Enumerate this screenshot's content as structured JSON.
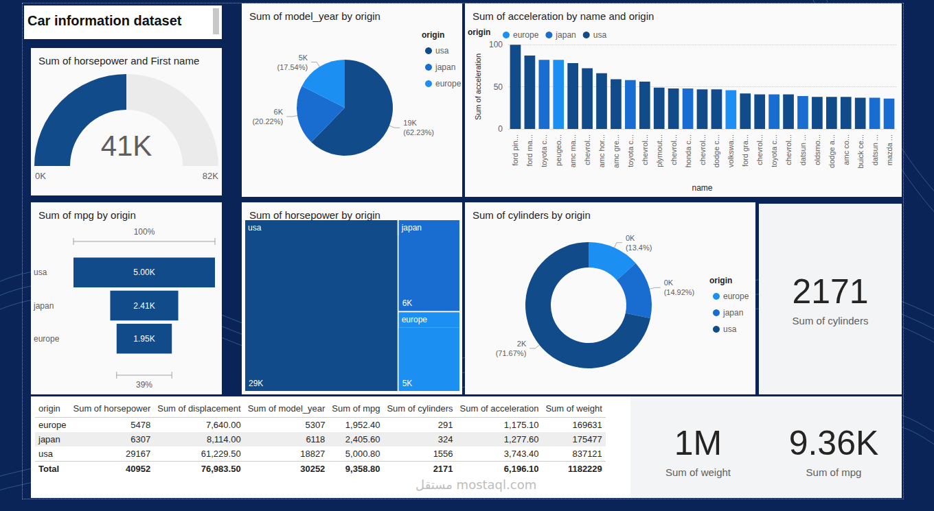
{
  "title": "Car information dataset",
  "chart_data": [
    {
      "type": "gauge",
      "title": "Sum of horsepower and First name",
      "values": [
        40952
      ],
      "value_labels": [
        "41K"
      ],
      "ylim": [
        0,
        81904
      ],
      "yticks": [
        {
          "value": 0,
          "label": "0K"
        },
        {
          "value": 81904,
          "label": "82K"
        }
      ],
      "color": "#124b8a",
      "data_labels": true
    },
    {
      "type": "pie",
      "title": "Sum of model_year by origin",
      "categories": [
        "usa",
        "japan",
        "europe"
      ],
      "values": [
        18827,
        6118,
        5307
      ],
      "value_labels": [
        "19K (62.23%)",
        "6K (20.22%)",
        "5K (17.54%)"
      ],
      "colors": [
        "#124b8a",
        "#1a6dd0",
        "#1b8ff2"
      ],
      "legend": "top-right",
      "legend_title": "origin",
      "data_labels": true
    },
    {
      "type": "bar",
      "title": "Sum of acceleration by name and origin",
      "xlabel": "name",
      "ylabel": "Sum of acceleration",
      "categories": [
        "ford pin...",
        "ford ma...",
        "toyota c...",
        "peugeo...",
        "amc ma...",
        "chevrol...",
        "amc hor...",
        "amc gre...",
        "toyota c...",
        "chevrol...",
        "plymout...",
        "chevrol...",
        "honda c...",
        "chevrol...",
        "dodge c...",
        "volkswa...",
        "ford gra...",
        "chevrol...",
        "toyota c...",
        "chevrol...",
        "datsun ...",
        "oldsmo...",
        "dodge a...",
        "amc co...",
        "buick ce...",
        "datsun ...",
        "mazda ..."
      ],
      "series": [
        {
          "name": "europe",
          "color": "#1b8ff2",
          "values": [
            null,
            null,
            null,
            82,
            null,
            null,
            null,
            null,
            null,
            null,
            null,
            null,
            null,
            null,
            null,
            46,
            null,
            null,
            null,
            null,
            null,
            null,
            null,
            null,
            null,
            null,
            null
          ]
        },
        {
          "name": "japan",
          "color": "#1a6dd0",
          "values": [
            null,
            null,
            82,
            null,
            null,
            null,
            null,
            null,
            58,
            null,
            null,
            null,
            48,
            null,
            null,
            null,
            null,
            null,
            41,
            null,
            39,
            null,
            null,
            null,
            null,
            37,
            36
          ]
        },
        {
          "name": "usa",
          "color": "#124b8a",
          "values": [
            99.8,
            87,
            null,
            null,
            78,
            72,
            66,
            59,
            null,
            56,
            49,
            48,
            null,
            47,
            47,
            null,
            42,
            41,
            null,
            41,
            null,
            38,
            38,
            38,
            37,
            null,
            null
          ]
        }
      ],
      "stacked": true,
      "ylim": [
        0,
        100
      ],
      "yticks": [
        0,
        50,
        100
      ],
      "grid": true,
      "legend": "top-left",
      "legend_title": "origin"
    },
    {
      "type": "funnel",
      "title": "Sum of mpg by origin",
      "categories": [
        "usa",
        "japan",
        "europe"
      ],
      "values": [
        5000.8,
        2405.6,
        1952.4
      ],
      "value_labels": [
        "5.00K",
        "2.41K",
        "1.95K"
      ],
      "xlim": [
        0,
        5000.8
      ],
      "color": "#124b8a",
      "data_labels": true,
      "tick_labels": "y",
      "annotations": [
        {
          "value": 100,
          "label": "100%"
        },
        {
          "value": 39,
          "label": "39%"
        }
      ]
    },
    {
      "type": "treemap",
      "title": "Sum of horsepower by origin",
      "categories": [
        "usa",
        "japan",
        "europe"
      ],
      "values": [
        29167,
        6307,
        5478
      ],
      "value_labels": [
        "29K",
        "6K",
        "5K"
      ],
      "colors": [
        "#124b8a",
        "#1a6dd0",
        "#1b8ff2"
      ],
      "data_labels": true
    },
    {
      "type": "donut",
      "title": "Sum of cylinders by origin",
      "categories": [
        "europe",
        "japan",
        "usa"
      ],
      "values": [
        291,
        324,
        1556
      ],
      "value_labels": [
        "0K (13.4%)",
        "0K (14.92%)",
        "2K (71.67%)"
      ],
      "colors": [
        "#1b8ff2",
        "#1a6dd0",
        "#124b8a"
      ],
      "legend": "right",
      "legend_title": "origin",
      "data_labels": true
    }
  ],
  "cards": [
    {
      "value": "2171",
      "caption": "Sum of cylinders"
    },
    {
      "value": "1M",
      "caption": "Sum of weight"
    },
    {
      "value": "9.36K",
      "caption": "Sum of mpg"
    }
  ],
  "table": {
    "columns": [
      "origin",
      "Sum of horsepower",
      "Sum of displacement",
      "Sum of model_year",
      "Sum of mpg",
      "Sum of cylinders",
      "Sum of acceleration",
      "Sum of weight"
    ],
    "rows": [
      [
        "europe",
        "5478",
        "7,640.00",
        "5307",
        "1,952.40",
        "291",
        "1,175.10",
        "169631"
      ],
      [
        "japan",
        "6307",
        "8,114.00",
        "6118",
        "2,405.60",
        "324",
        "1,277.60",
        "175477"
      ],
      [
        "usa",
        "29167",
        "61,229.50",
        "18827",
        "5,000.80",
        "1556",
        "3,743.40",
        "837121"
      ]
    ],
    "total": [
      "Total",
      "40952",
      "76,983.50",
      "30252",
      "9,358.80",
      "2171",
      "6,196.10",
      "1182229"
    ]
  },
  "watermark": "مستقل mostaql.com"
}
